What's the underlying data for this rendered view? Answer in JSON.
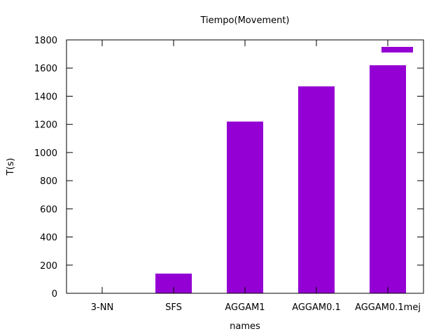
{
  "chart_data": {
    "type": "bar",
    "title": "Tiempo(Movement)",
    "xlabel": "names",
    "ylabel": "T(s)",
    "categories": [
      "3-NN",
      "SFS",
      "AGGAM1",
      "AGGAM0.1",
      "AGGAM0.1mej"
    ],
    "values": [
      0,
      140,
      1220,
      1470,
      1620
    ],
    "ylim": [
      0,
      1800
    ],
    "yticks": [
      0,
      200,
      400,
      600,
      800,
      1000,
      1200,
      1400,
      1600,
      1800
    ],
    "grid": false,
    "legend": {
      "placement": "top-right",
      "entries": [
        ""
      ]
    },
    "bar_color": "#9400d3"
  }
}
